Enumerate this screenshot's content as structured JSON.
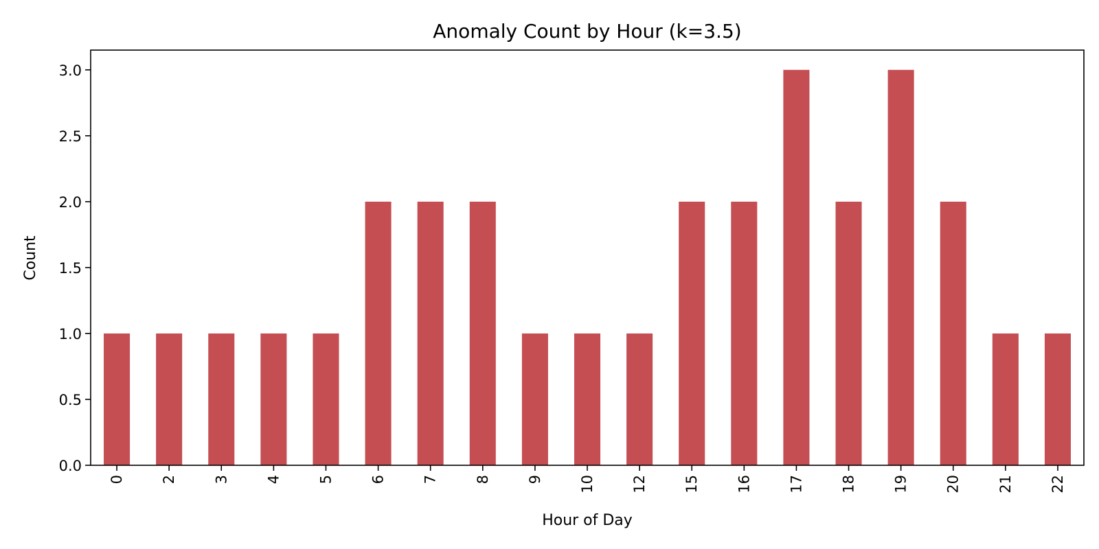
{
  "chart_data": {
    "type": "bar",
    "title": "Anomaly Count by Hour (k=3.5)",
    "xlabel": "Hour of Day",
    "ylabel": "Count",
    "categories": [
      "0",
      "2",
      "3",
      "4",
      "5",
      "6",
      "7",
      "8",
      "9",
      "10",
      "12",
      "15",
      "16",
      "17",
      "18",
      "19",
      "20",
      "21",
      "22"
    ],
    "values": [
      1,
      1,
      1,
      1,
      1,
      2,
      2,
      2,
      1,
      1,
      1,
      2,
      2,
      3,
      2,
      3,
      2,
      1,
      1
    ],
    "ylim": [
      0,
      3.15
    ],
    "yticks": [
      "0.0",
      "0.5",
      "1.0",
      "1.5",
      "2.0",
      "2.5",
      "3.0"
    ],
    "bar_color": "#c44e52",
    "grid": false,
    "legend": "none"
  }
}
